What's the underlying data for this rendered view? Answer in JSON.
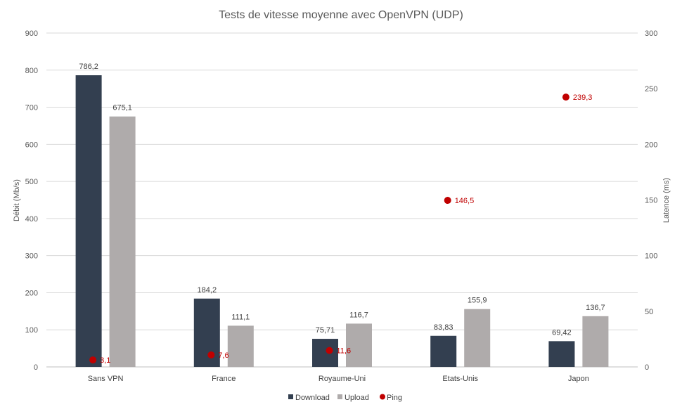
{
  "chart_data": {
    "type": "bar",
    "title": "Tests de vitesse moyenne avec OpenVPN (UDP)",
    "categories": [
      "Sans VPN",
      "France",
      "Royaume-Uni",
      "Etats-Unis",
      "Japon"
    ],
    "series": [
      {
        "name": "Download",
        "axis": "left",
        "kind": "bar",
        "color": "#333f50",
        "values": [
          786.2,
          184.2,
          75.71,
          83.83,
          69.42
        ],
        "labels": [
          "786,2",
          "184,2",
          "75,71",
          "83,83",
          "69,42"
        ]
      },
      {
        "name": "Upload",
        "axis": "left",
        "kind": "bar",
        "color": "#afabab",
        "values": [
          675.1,
          111.1,
          116.7,
          155.9,
          136.7
        ],
        "labels": [
          "675,1",
          "111,1",
          "116,7",
          "155,9",
          "136,7"
        ]
      },
      {
        "name": "Ping",
        "axis": "right",
        "kind": "scatter",
        "color": "#c00000",
        "values": [
          3.1,
          7.6,
          11.6,
          146.5,
          239.3
        ],
        "labels": [
          "3,1",
          "7,6",
          "11,6",
          "146,5",
          "239,3"
        ]
      }
    ],
    "y_left": {
      "label": "Débit (Mb/s)",
      "range": [
        0,
        900
      ],
      "ticks": [
        "0",
        "100",
        "200",
        "300",
        "400",
        "500",
        "600",
        "700",
        "800",
        "900"
      ]
    },
    "y_right": {
      "label": "Latence (ms)",
      "range": [
        0,
        300
      ],
      "ticks": [
        "0",
        "50",
        "100",
        "150",
        "200",
        "250",
        "300"
      ]
    },
    "grid": true,
    "legend_position": "bottom"
  }
}
